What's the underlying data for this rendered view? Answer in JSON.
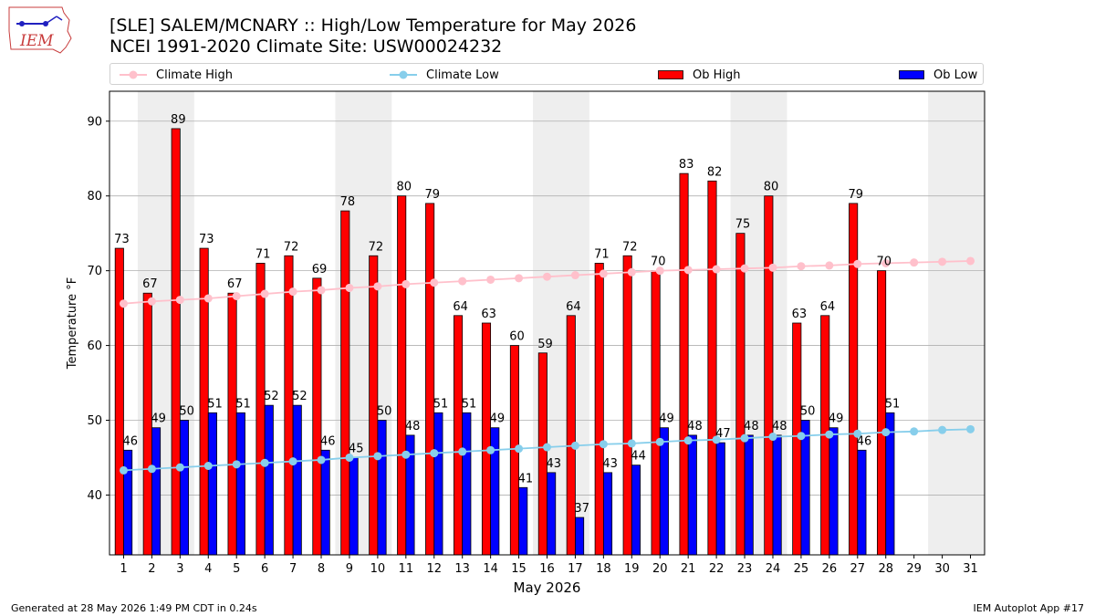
{
  "header": {
    "logo_text": "IEM",
    "title_line1": "[SLE] SALEM/MCNARY :: High/Low Temperature for May 2026",
    "title_line2": "NCEI 1991-2020 Climate Site: USW00024232"
  },
  "legend": {
    "climate_high": "Climate High",
    "climate_low": "Climate Low",
    "ob_high": "Ob High",
    "ob_low": "Ob Low"
  },
  "footer": {
    "left": "Generated at 28 May 2026 1:49 PM CDT in 0.24s",
    "right": "IEM Autoplot App #17"
  },
  "chart_data": {
    "type": "bar",
    "title": "[SLE] SALEM/MCNARY :: High/Low Temperature for May 2026",
    "subtitle": "NCEI 1991-2020 Climate Site: USW00024232",
    "xlabel": "May 2026",
    "ylabel": "Temperature °F",
    "ylim": [
      32,
      94
    ],
    "yticks": [
      40,
      50,
      60,
      70,
      80,
      90
    ],
    "grid": "horizontal",
    "legend_position": "top",
    "weekend_shading": [
      [
        2,
        3
      ],
      [
        9,
        10
      ],
      [
        16,
        17
      ],
      [
        23,
        24
      ],
      [
        30,
        31
      ]
    ],
    "categories": [
      1,
      2,
      3,
      4,
      5,
      6,
      7,
      8,
      9,
      10,
      11,
      12,
      13,
      14,
      15,
      16,
      17,
      18,
      19,
      20,
      21,
      22,
      23,
      24,
      25,
      26,
      27,
      28,
      29,
      30,
      31
    ],
    "series": [
      {
        "name": "Ob High",
        "type": "bar",
        "color": "#ff0000",
        "values": [
          73,
          67,
          89,
          73,
          67,
          71,
          72,
          69,
          78,
          72,
          80,
          79,
          64,
          63,
          60,
          59,
          64,
          71,
          72,
          70,
          83,
          82,
          75,
          80,
          63,
          64,
          79,
          70,
          null,
          null,
          null
        ]
      },
      {
        "name": "Ob Low",
        "type": "bar",
        "color": "#0000ff",
        "values": [
          46,
          49,
          50,
          51,
          51,
          52,
          52,
          46,
          45,
          50,
          48,
          51,
          51,
          49,
          41,
          43,
          37,
          43,
          44,
          49,
          48,
          47,
          48,
          48,
          50,
          49,
          46,
          51,
          null,
          null,
          null
        ]
      },
      {
        "name": "Climate High",
        "type": "line",
        "color": "#ffc0cb",
        "values": [
          65.6,
          65.9,
          66.1,
          66.3,
          66.6,
          66.9,
          67.2,
          67.4,
          67.7,
          67.9,
          68.2,
          68.4,
          68.6,
          68.8,
          69.0,
          69.2,
          69.4,
          69.6,
          69.8,
          70.0,
          70.1,
          70.2,
          70.3,
          70.4,
          70.6,
          70.7,
          70.9,
          71.0,
          71.1,
          71.2,
          71.3
        ]
      },
      {
        "name": "Climate Low",
        "type": "line",
        "color": "#87ceeb",
        "values": [
          43.3,
          43.5,
          43.7,
          43.9,
          44.1,
          44.3,
          44.5,
          44.7,
          45.0,
          45.2,
          45.4,
          45.6,
          45.8,
          46.0,
          46.2,
          46.4,
          46.6,
          46.8,
          46.9,
          47.1,
          47.3,
          47.4,
          47.6,
          47.8,
          47.9,
          48.1,
          48.2,
          48.4,
          48.5,
          48.7,
          48.8
        ]
      }
    ]
  }
}
